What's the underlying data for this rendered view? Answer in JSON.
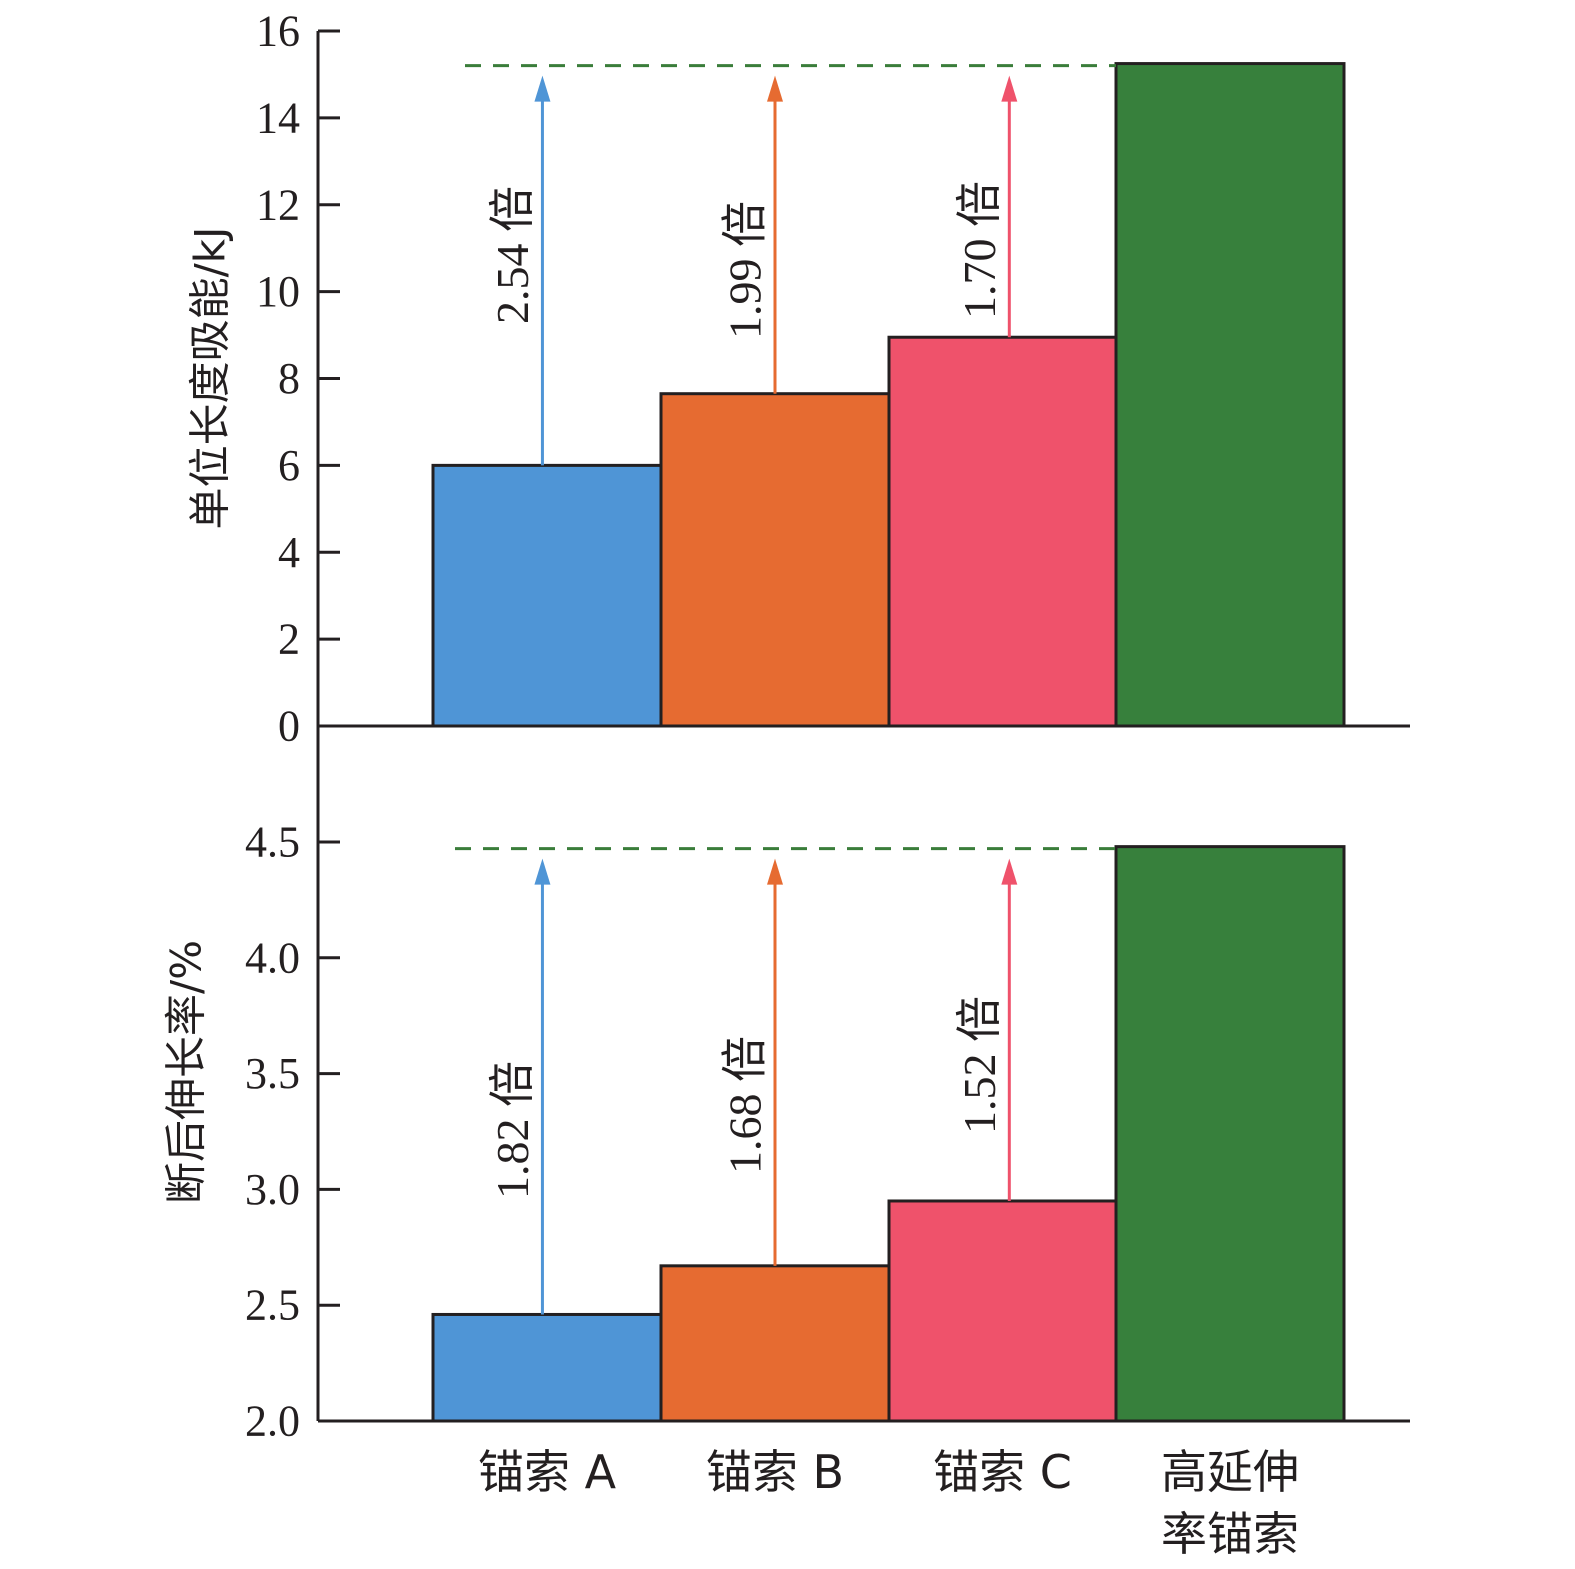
{
  "colors": {
    "axis": "#231f20",
    "ref_line": "#3a7d3a"
  },
  "chart_data": [
    {
      "type": "bar",
      "ylabel": "单位长度吸能/kJ",
      "ylim": [
        0,
        16
      ],
      "yticks": [
        "0",
        "2",
        "4",
        "6",
        "8",
        "10",
        "12",
        "14",
        "16"
      ],
      "categories": [
        "锚索 A",
        "锚索 B",
        "锚索 C",
        "高延伸率锚索"
      ],
      "values": [
        6.0,
        7.65,
        8.95,
        15.25
      ],
      "colors": [
        "#4f95d6",
        "#e66b31",
        "#ef526b",
        "#37803c"
      ],
      "annotations": [
        {
          "label": "2.54 倍",
          "color": "#4f95d6"
        },
        {
          "label": "1.99 倍",
          "color": "#e66b31"
        },
        {
          "label": "1.70 倍",
          "color": "#ef526b"
        }
      ]
    },
    {
      "type": "bar",
      "ylabel": "断后伸长率/%",
      "ylim": [
        2.0,
        4.5
      ],
      "yticks": [
        "2.0",
        "2.5",
        "3.0",
        "3.5",
        "4.0",
        "4.5"
      ],
      "categories": [
        "锚索 A",
        "锚索 B",
        "锚索 C",
        "高延伸率锚索"
      ],
      "values": [
        2.46,
        2.67,
        2.95,
        4.48
      ],
      "colors": [
        "#4f95d6",
        "#e66b31",
        "#ef526b",
        "#37803c"
      ],
      "annotations": [
        {
          "label": "1.82 倍",
          "color": "#4f95d6"
        },
        {
          "label": "1.68 倍",
          "color": "#e66b31"
        },
        {
          "label": "1.52 倍",
          "color": "#ef526b"
        }
      ]
    }
  ],
  "x_axis": {
    "category_labels": [
      [
        "锚索 A"
      ],
      [
        "锚索 B"
      ],
      [
        "锚索 C"
      ],
      [
        "高延伸",
        "率锚索"
      ]
    ]
  }
}
